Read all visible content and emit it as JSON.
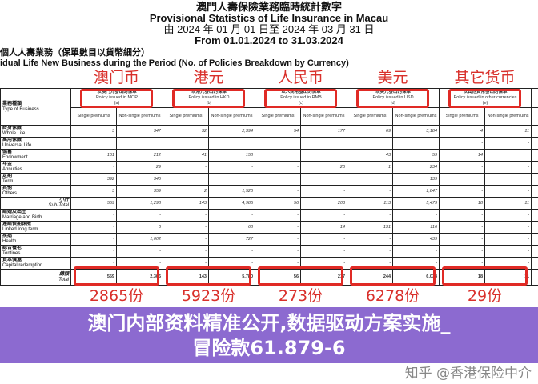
{
  "header": {
    "title_zh": "澳門人壽保險業務臨時統計數字",
    "title_en": "Provisional Statistics of Life Insurance in Macau",
    "period_zh": "由 2024 年 01 月 01 日至 2024 年 03 月 31 日",
    "period_en": "From 01.01.2024 to 31.03.2024",
    "section_zh": "個人人壽業務（保單數目以貨幣細分）",
    "section_en": "idual Life New Business during the Period (No. of Policies Breakdown by Currency)"
  },
  "annotations": {
    "currencies": [
      "澳门币",
      "港元",
      "人民币",
      "美元",
      "其它货币"
    ],
    "totals": [
      "2865份",
      "5923份",
      "273份",
      "6278份",
      "29份"
    ]
  },
  "table": {
    "type_header_zh": "業務種類",
    "type_header_en": "Type of Business",
    "currency_headers": [
      {
        "zh": "以澳門元發出的保單",
        "en": "Policy issued in MOP",
        "code": "(a)"
      },
      {
        "zh": "以港元發出的保單",
        "en": "Policy issued in HKD",
        "code": "(b)"
      },
      {
        "zh": "以人民幣發出的保單",
        "en": "Policy issued in RMB",
        "code": "(c)"
      },
      {
        "zh": "以美元發出的保單",
        "en": "Policy issued in USD",
        "code": "(d)"
      },
      {
        "zh": "以其他貨幣發出的保單",
        "en": "Policy issued in other currencies",
        "code": "(e)"
      }
    ],
    "sub_single": "Single premiums",
    "sub_nonsingle": "Non-single premiums",
    "rows": [
      {
        "zh": "終身保險",
        "en": "Whole Life",
        "v": [
          "3",
          "347",
          "32",
          "2,394",
          "54",
          "177",
          "69",
          "3,184",
          "4",
          "11"
        ]
      },
      {
        "zh": "萬用保險",
        "en": "Universal Life",
        "v": [
          "",
          "",
          "",
          "",
          "",
          "",
          "",
          "",
          "-",
          "-"
        ]
      },
      {
        "zh": "儲蓄",
        "en": "Endowment",
        "v": [
          "161",
          "212",
          "41",
          "158",
          "",
          "",
          "43",
          "59",
          "14",
          ""
        ]
      },
      {
        "zh": "年金",
        "en": "Annuities",
        "v": [
          "-",
          "29",
          "-",
          "-",
          "-",
          "26",
          "1",
          "234",
          "-",
          "-"
        ]
      },
      {
        "zh": "定期",
        "en": "Term",
        "v": [
          "392",
          "346",
          "",
          "",
          "",
          "",
          "",
          "139",
          "",
          ""
        ]
      },
      {
        "zh": "其他",
        "en": "Others",
        "v": [
          "3",
          "359",
          "2",
          "1,526",
          "-",
          "-",
          "-",
          "1,847",
          "-",
          "-"
        ]
      },
      {
        "zh": "小計",
        "en": "Sub-Total",
        "v": [
          "559",
          "1,298",
          "143",
          "4,985",
          "56",
          "203",
          "113",
          "5,479",
          "18",
          "11"
        ],
        "sub": true
      },
      {
        "zh": "結婚及出生",
        "en": "Marriage and Birth",
        "v": [
          "-",
          "-",
          "-",
          "-",
          "-",
          "-",
          "-",
          "-",
          "-",
          "-"
        ]
      },
      {
        "zh": "連結長期保險",
        "en": "Linked long term",
        "v": [
          "-",
          "6",
          "-",
          "68",
          "-",
          "14",
          "131",
          "116",
          "-",
          "-"
        ]
      },
      {
        "zh": "疾病",
        "en": "Health",
        "v": [
          "-",
          "1,002",
          "-",
          "727",
          "-",
          "-",
          "-",
          "439",
          "-",
          "-"
        ]
      },
      {
        "zh": "綜合養老",
        "en": "Tontines",
        "v": [
          "-",
          "-",
          "-",
          "-",
          "-",
          "-",
          "-",
          "-",
          "-",
          "-"
        ]
      },
      {
        "zh": "資本償還",
        "en": "Capital redemption",
        "v": [
          "-",
          "-",
          "-",
          "-",
          "-",
          "-",
          "-",
          "-",
          "-",
          "-"
        ]
      },
      {
        "zh": "總額",
        "en": "Total",
        "v": [
          "559",
          "2,306",
          "143",
          "5,780",
          "56",
          "217",
          "244",
          "6,034",
          "18",
          "11"
        ],
        "sub": true
      }
    ]
  },
  "overlay": {
    "line1": "澳门内部资料精准公开,数据驱动方案实施_",
    "line2": "冒险款61.879-6"
  },
  "watermark": "知乎 @香港保险中介",
  "colors": {
    "annotation_red": "#d9302b",
    "overlay_purple": "#7850c8"
  }
}
